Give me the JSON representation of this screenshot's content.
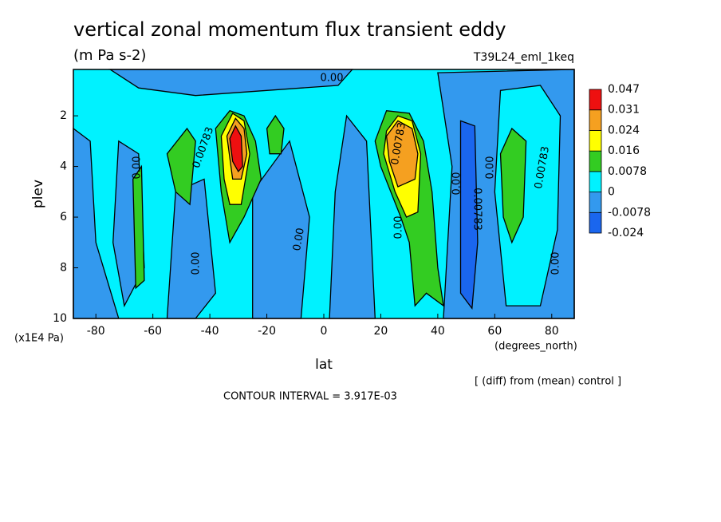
{
  "chart_data": {
    "type": "contour",
    "title": "vertical zonal momentum flux transient eddy",
    "subtitle": "(m Pa s-2)",
    "dataset": "T39L24_eml_1keq",
    "x_label": "lat",
    "x_units": "(degrees_north)",
    "y_label": "plev",
    "y_units": "(x1E4 Pa)",
    "xlim": [
      -87.9,
      87.9
    ],
    "xticks": [
      -80,
      -60,
      -40,
      -20,
      0,
      20,
      40,
      60,
      80
    ],
    "ylim": [
      0.17,
      10
    ],
    "y_inverted": true,
    "yticks": [
      2,
      4,
      6,
      8,
      10
    ],
    "levels": [
      -0.024,
      -0.0078,
      0,
      0.0078,
      0.016,
      0.024,
      0.031,
      0.047
    ],
    "colors": [
      "#1a66ee",
      "#3399ee",
      "#00f2ff",
      "#33cc22",
      "#ffff00",
      "#f5a020",
      "#ee1010"
    ],
    "contour_labels": [
      "0.00",
      "0.00783",
      "0.00",
      "0.00",
      "0.00",
      "0.00",
      "0.00783",
      "0.00783",
      "0.00",
      "0.00",
      "0.00",
      "0.00783"
    ],
    "note": "[ (diff) from (mean) control ]",
    "contour_interval": "CONTOUR INTERVAL = 3.917E-03"
  }
}
